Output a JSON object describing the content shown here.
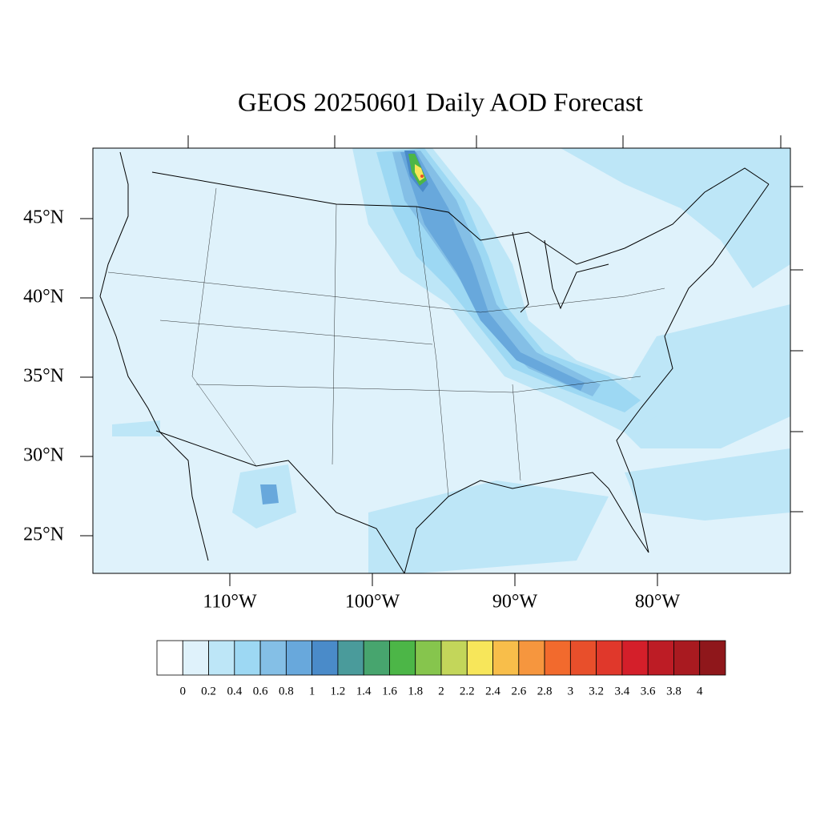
{
  "map": {
    "title": "GEOS 20250601 Daily AOD Forecast",
    "lat_ticks": [
      {
        "value": 45,
        "label": "45°N"
      },
      {
        "value": 40,
        "label": "40°N"
      },
      {
        "value": 35,
        "label": "35°N"
      },
      {
        "value": 30,
        "label": "30°N"
      },
      {
        "value": 25,
        "label": "25°N"
      }
    ],
    "lon_ticks": [
      {
        "value": -110,
        "label": "110°W"
      },
      {
        "value": -100,
        "label": "100°W"
      },
      {
        "value": -90,
        "label": "90°W"
      },
      {
        "value": -80,
        "label": "80°W"
      }
    ],
    "colorbar": {
      "levels": [
        0,
        0.2,
        0.4,
        0.6,
        0.8,
        1,
        1.2,
        1.4,
        1.6,
        1.8,
        2,
        2.2,
        2.4,
        2.6,
        2.8,
        3,
        3.2,
        3.4,
        3.6,
        3.8,
        4
      ],
      "colors": [
        "#ffffff",
        "#dff2fb",
        "#bde6f7",
        "#9dd8f3",
        "#84bfe6",
        "#68a8dc",
        "#4a8bc9",
        "#4a9b9b",
        "#47a56e",
        "#4cb647",
        "#86c54d",
        "#c3d65a",
        "#f7e65a",
        "#f8be4a",
        "#f6963e",
        "#f26a2d",
        "#e84f2b",
        "#e0382b",
        "#d41f2a",
        "#bd1c25",
        "#a91a20",
        "#8f171b"
      ]
    }
  }
}
